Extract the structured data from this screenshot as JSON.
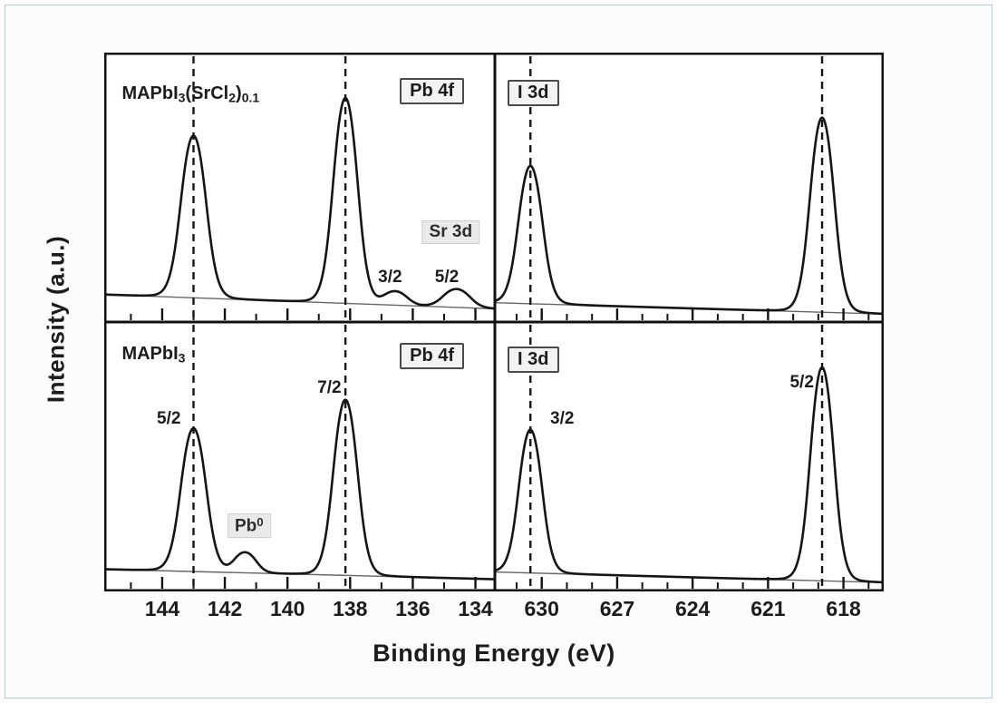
{
  "page": {
    "background": "#fcfcfc",
    "frame_color": "#bccbd9"
  },
  "figure": {
    "xlabel": "Binding Energy (eV)",
    "ylabel": "Intensity (a.u.)",
    "line_color": "#151515",
    "baseline_color": "#666666",
    "dash_color": "#151515"
  },
  "chart_data": [
    {
      "name": "pb4f-srcl2",
      "type": "line",
      "row": 0,
      "col": 0,
      "x_unit": "eV",
      "x_axis_reversed": true,
      "xlim": [
        145.85,
        133.35
      ],
      "peaks": [
        {
          "center": 143.0,
          "amp": 0.6,
          "width": 0.52
        },
        {
          "center": 138.15,
          "amp": 0.76,
          "width": 0.5
        },
        {
          "center": 136.55,
          "amp": 0.05,
          "width": 0.48
        },
        {
          "center": 134.6,
          "amp": 0.068,
          "width": 0.55
        }
      ],
      "baseline": {
        "left_frac": 0.105,
        "right_frac": 0.052
      },
      "dashed_lines": [
        143.0,
        138.15
      ],
      "ticks_major": [
        144,
        142,
        140,
        138,
        136,
        134
      ],
      "ticks_minor": [
        145,
        143,
        141,
        139,
        137,
        135
      ],
      "show_tick_labels": false,
      "labels": [
        {
          "name": "sample-formula-label",
          "kind": "sample",
          "x": 0.045,
          "y": 0.115,
          "segments": [
            {
              "t": "MAPbI"
            },
            {
              "t": "3",
              "style": "sub"
            },
            {
              "t": "(SrCl"
            },
            {
              "t": "2",
              "style": "sub"
            },
            {
              "t": ")"
            },
            {
              "t": "0.1",
              "style": "sub"
            }
          ]
        },
        {
          "name": "region-badge-pb4f",
          "kind": "boxed",
          "x": 0.755,
          "y": 0.095,
          "text": "Pb 4f"
        },
        {
          "name": "sr3d-label",
          "kind": "softbox",
          "x": 0.885,
          "y": 0.625,
          "text": "Sr 3d"
        },
        {
          "name": "peak-annotation-sr3d-3-2",
          "kind": "plain",
          "x": 0.73,
          "y": 0.795,
          "text": "3/2"
        },
        {
          "name": "peak-annotation-sr3d-5-2",
          "kind": "plain",
          "x": 0.875,
          "y": 0.795,
          "text": "5/2"
        }
      ]
    },
    {
      "name": "i3d-srcl2",
      "type": "line",
      "row": 0,
      "col": 1,
      "x_unit": "eV",
      "x_axis_reversed": true,
      "xlim": [
        631.9,
        616.4
      ],
      "peaks": [
        {
          "center": 630.45,
          "amp": 0.51,
          "width": 0.62
        },
        {
          "center": 618.85,
          "amp": 0.72,
          "width": 0.62
        }
      ],
      "baseline": {
        "left_frac": 0.075,
        "right_frac": 0.033
      },
      "dashed_lines": [
        630.45,
        618.85
      ],
      "ticks_major": [
        630,
        627,
        624,
        621,
        618
      ],
      "ticks_minor": [
        631,
        629,
        628,
        626,
        625,
        623,
        622,
        620,
        619,
        617
      ],
      "show_tick_labels": false,
      "labels": [
        {
          "name": "region-badge-i3d",
          "kind": "boxed",
          "x": 0.035,
          "y": 0.1,
          "text": "I 3d"
        }
      ]
    },
    {
      "name": "pb4f",
      "type": "line",
      "row": 1,
      "col": 0,
      "x_unit": "eV",
      "x_axis_reversed": true,
      "xlim": [
        145.85,
        133.35
      ],
      "peaks": [
        {
          "center": 143.0,
          "amp": 0.53,
          "width": 0.52
        },
        {
          "center": 141.35,
          "amp": 0.075,
          "width": 0.45
        },
        {
          "center": 138.15,
          "amp": 0.65,
          "width": 0.5
        }
      ],
      "baseline": {
        "left_frac": 0.082,
        "right_frac": 0.045
      },
      "dashed_lines": [
        143.0,
        138.15
      ],
      "ticks_major": [
        144,
        142,
        140,
        138,
        136,
        134
      ],
      "ticks_minor": [
        145,
        143,
        141,
        139,
        137,
        135
      ],
      "show_tick_labels": true,
      "labels": [
        {
          "name": "sample-formula-label",
          "kind": "sample",
          "x": 0.045,
          "y": 0.085,
          "segments": [
            {
              "t": "MAPbI"
            },
            {
              "t": "3",
              "style": "sub"
            }
          ]
        },
        {
          "name": "region-badge-pb4f",
          "kind": "boxed",
          "x": 0.755,
          "y": 0.08,
          "text": "Pb 4f"
        },
        {
          "name": "peak-annotation-5-2",
          "kind": "plain",
          "x": 0.165,
          "y": 0.325,
          "text": "5/2"
        },
        {
          "name": "peak-annotation-7-2",
          "kind": "plain",
          "x": 0.575,
          "y": 0.21,
          "text": "7/2"
        },
        {
          "name": "pb0-label",
          "kind": "softbox",
          "x": 0.37,
          "y": 0.715,
          "segments": [
            {
              "t": "Pb"
            },
            {
              "t": "0",
              "style": "sup"
            }
          ]
        }
      ]
    },
    {
      "name": "i3d",
      "type": "line",
      "row": 1,
      "col": 1,
      "x_unit": "eV",
      "x_axis_reversed": true,
      "xlim": [
        631.9,
        616.4
      ],
      "peaks": [
        {
          "center": 630.45,
          "amp": 0.53,
          "width": 0.6
        },
        {
          "center": 618.85,
          "amp": 0.79,
          "width": 0.6
        }
      ],
      "baseline": {
        "left_frac": 0.072,
        "right_frac": 0.033
      },
      "dashed_lines": [
        630.45,
        618.85
      ],
      "ticks_major": [
        630,
        627,
        624,
        621,
        618
      ],
      "ticks_minor": [
        631,
        629,
        628,
        626,
        625,
        623,
        622,
        620,
        619,
        617
      ],
      "show_tick_labels": true,
      "labels": [
        {
          "name": "region-badge-i3d",
          "kind": "boxed",
          "x": 0.035,
          "y": 0.095,
          "text": "I 3d"
        },
        {
          "name": "peak-annotation-3-2",
          "kind": "plain",
          "x": 0.175,
          "y": 0.325,
          "text": "3/2"
        },
        {
          "name": "peak-annotation-5-2",
          "kind": "plain",
          "x": 0.79,
          "y": 0.19,
          "text": "5/2"
        }
      ]
    }
  ]
}
